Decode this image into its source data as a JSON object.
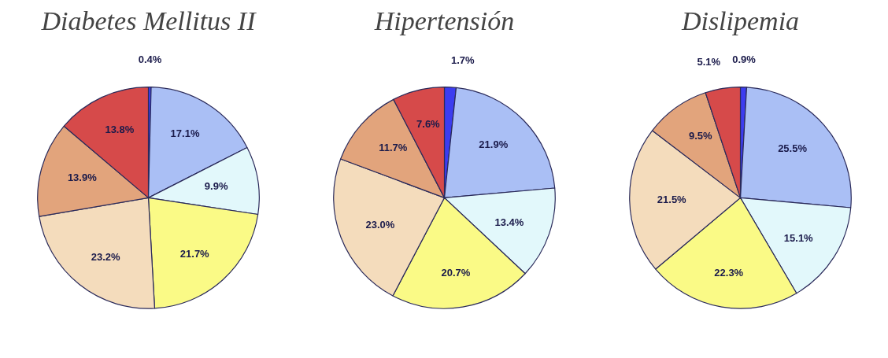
{
  "chart_data": [
    {
      "type": "pie",
      "title": "Diabetes Mellitus II",
      "categories": [
        null,
        null,
        null,
        null,
        null,
        null,
        null
      ],
      "values": [
        0.4,
        17.1,
        9.9,
        21.7,
        23.2,
        13.9,
        13.8
      ],
      "value_labels": [
        "0.4%",
        "17.1%",
        "9.9%",
        "21.7%",
        "23.2%",
        "13.9%",
        "13.8%"
      ],
      "colors": [
        "#3c3cf0",
        "#aabff5",
        "#e2f8fb",
        "#fafa86",
        "#f4dcbc",
        "#e2a47c",
        "#d64a4a"
      ]
    },
    {
      "type": "pie",
      "title": "Hipertensión",
      "categories": [
        null,
        null,
        null,
        null,
        null,
        null,
        null
      ],
      "values": [
        1.7,
        21.9,
        13.4,
        20.7,
        23.0,
        11.7,
        7.6
      ],
      "value_labels": [
        "1.7%",
        "21.9%",
        "13.4%",
        "20.7%",
        "23.0%",
        "11.7%",
        "7.6%"
      ],
      "colors": [
        "#3c3cf0",
        "#aabff5",
        "#e2f8fb",
        "#fafa86",
        "#f4dcbc",
        "#e2a47c",
        "#d64a4a"
      ]
    },
    {
      "type": "pie",
      "title": "Dislipemia",
      "categories": [
        null,
        null,
        null,
        null,
        null,
        null,
        null
      ],
      "values": [
        0.9,
        25.5,
        15.1,
        22.3,
        21.5,
        9.5,
        5.1
      ],
      "value_labels": [
        "0.9%",
        "25.5%",
        "15.1%",
        "22.3%",
        "21.5%",
        "9.5%",
        "5.1%"
      ],
      "colors": [
        "#3c3cf0",
        "#aabff5",
        "#e2f8fb",
        "#fafa86",
        "#f4dcbc",
        "#e2a47c",
        "#d64a4a"
      ]
    }
  ]
}
